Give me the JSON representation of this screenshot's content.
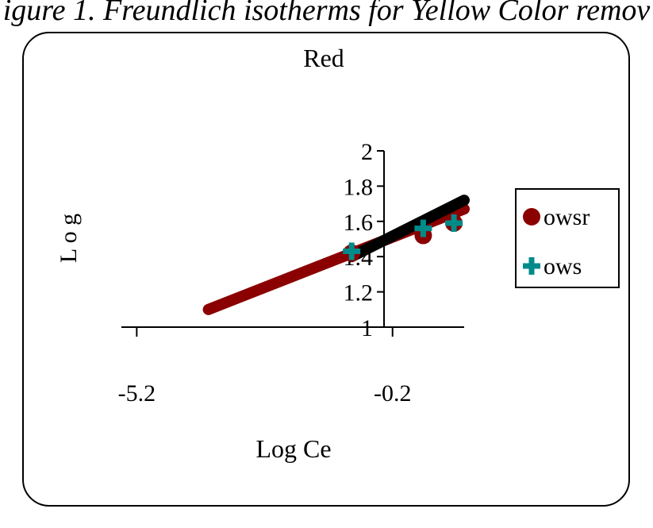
{
  "caption": "igure 1. Freundlich isotherms for Yellow Color remov",
  "chart_data": {
    "type": "scatter",
    "title": "Red",
    "xlabel": "Log Ce",
    "ylabel": "L o g",
    "xlim": [
      -5.5,
      1.2
    ],
    "ylim": [
      1,
      2
    ],
    "x_ticks": [
      -5.2,
      -0.2
    ],
    "x_tick_labels": [
      "-5.2",
      "-0.2"
    ],
    "y_ticks": [
      1,
      1.2,
      1.4,
      1.6,
      1.8,
      2
    ],
    "y_tick_labels": [
      "1",
      "1.2",
      "1.4",
      "1.6",
      "1.8",
      "2"
    ],
    "legend_position": "right",
    "series": [
      {
        "name": "owsr",
        "color": "#8b0000",
        "marker": "circle",
        "x": [
          -1.0,
          0.4,
          1.0
        ],
        "y": [
          1.42,
          1.52,
          1.59
        ],
        "fit": {
          "x": [
            -3.8,
            1.2
          ],
          "y": [
            1.1,
            1.67
          ]
        }
      },
      {
        "name": "ows",
        "color": "#008b8b",
        "marker": "plus",
        "x": [
          -1.0,
          0.4,
          1.0
        ],
        "y": [
          1.43,
          1.56,
          1.59
        ],
        "fit": {
          "x": [
            -1.0,
            1.2
          ],
          "y": [
            1.4,
            1.72
          ]
        }
      }
    ],
    "fit_colors": {
      "owsr": "#8b0000",
      "ows": "#000000"
    }
  }
}
